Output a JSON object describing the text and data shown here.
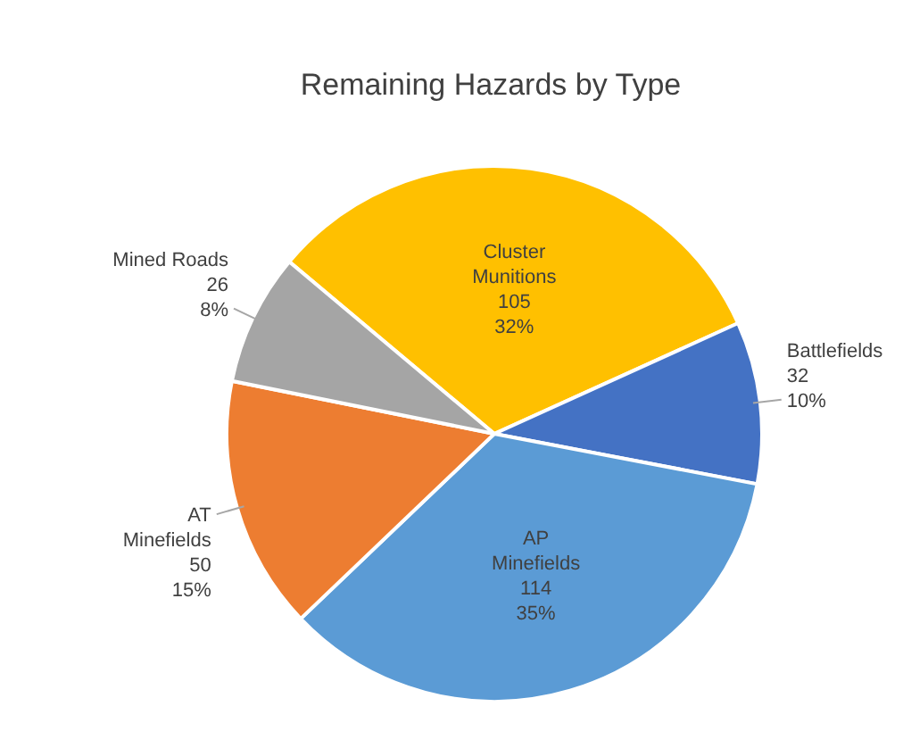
{
  "chart_data": {
    "type": "pie",
    "title": "Remaining Hazards by Type",
    "categories": [
      "Cluster Munitions",
      "Battlefields",
      "AP Minefields",
      "AT Minefields",
      "Mined Roads"
    ],
    "values": [
      105,
      32,
      114,
      50,
      26
    ],
    "value_labels": [
      "105\n32%",
      "32\n10%",
      "114\n35%",
      "50\n15%",
      "26\n8%"
    ],
    "colors": [
      "#ffc000",
      "#4472c4",
      "#5b9bd5",
      "#ed7d31",
      "#a5a5a5"
    ]
  }
}
